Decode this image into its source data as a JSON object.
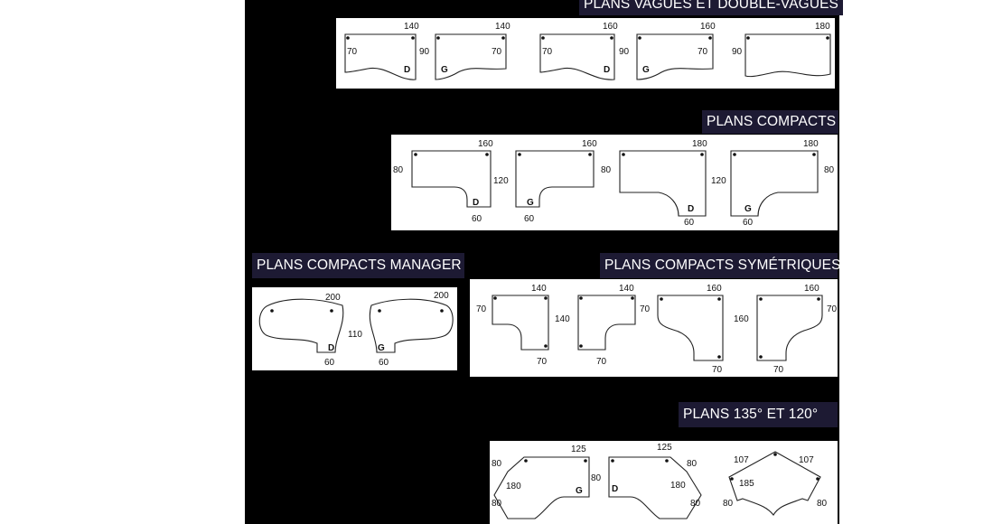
{
  "sections": {
    "vagues": {
      "title": "PLANS VAGUES ET DOUBLE-VAGUES"
    },
    "compacts": {
      "title": "PLANS COMPACTS"
    },
    "manager": {
      "title": "PLANS COMPACTS MANAGER"
    },
    "symetric": {
      "title": "PLANS COMPACTS SYMÉTRIQUES"
    },
    "angles": {
      "title": "PLANS 135° ET 120°"
    }
  },
  "vagues": {
    "d1": {
      "w": "140",
      "h": "70",
      "side": "D"
    },
    "d2": {
      "w": "140",
      "h": "70",
      "h2": "90",
      "side": "G"
    },
    "d3": {
      "w": "160",
      "h": "70",
      "side": "D"
    },
    "d4": {
      "w": "160",
      "h": "70",
      "h2": "90",
      "side": "G"
    },
    "d5": {
      "w": "180",
      "h": "90"
    }
  },
  "compacts": {
    "d1": {
      "w": "160",
      "h": "80",
      "h2": "120",
      "b": "60",
      "side": "D"
    },
    "d2": {
      "w": "160",
      "b": "60",
      "side": "G"
    },
    "d3": {
      "w": "180",
      "h": "80",
      "h2": "120",
      "b": "60",
      "side": "D"
    },
    "d4": {
      "w": "180",
      "h": "80",
      "b": "60",
      "side": "G"
    }
  },
  "manager": {
    "d1": {
      "w": "200",
      "h": "110",
      "b": "60",
      "side": "D"
    },
    "d2": {
      "w": "200",
      "b": "60",
      "side": "G"
    }
  },
  "symetric": {
    "d1": {
      "w": "140",
      "h": "70",
      "h2": "140",
      "b": "70"
    },
    "d2": {
      "w": "140",
      "h": "70",
      "b": "70"
    },
    "d3": {
      "w": "160",
      "h2": "160",
      "b": "70"
    },
    "d4": {
      "w": "160",
      "h": "70",
      "b": "70"
    }
  },
  "angles": {
    "d1": {
      "w": "125",
      "a": "80",
      "b": "80",
      "c": "180",
      "side": "G"
    },
    "d2": {
      "w": "125",
      "a": "80",
      "b": "80",
      "b2": "80",
      "c": "180",
      "side": "D"
    },
    "d3": {
      "w1": "107",
      "w2": "107",
      "c": "185",
      "a": "80",
      "b": "80"
    }
  }
}
